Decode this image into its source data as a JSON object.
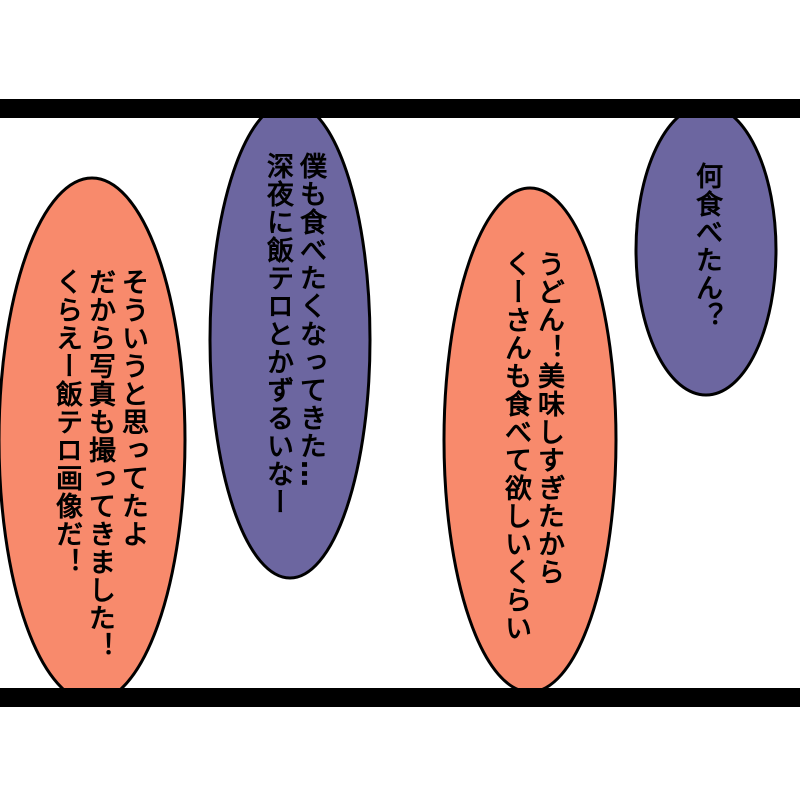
{
  "bubbles": [
    {
      "lines": [
        "そういうと思ってたよ",
        "だから写真も撮ってきました！",
        "くらえー飯テロ画像だ！"
      ]
    },
    {
      "lines": [
        "僕も食べたくなってきた…",
        "深夜に飯テロとかずるいなー"
      ]
    },
    {
      "lines": [
        "うどん！美味しすぎたから",
        "くーさんも食べて欲しいくらい"
      ]
    },
    {
      "lines": [
        "何食べたん？"
      ]
    }
  ]
}
